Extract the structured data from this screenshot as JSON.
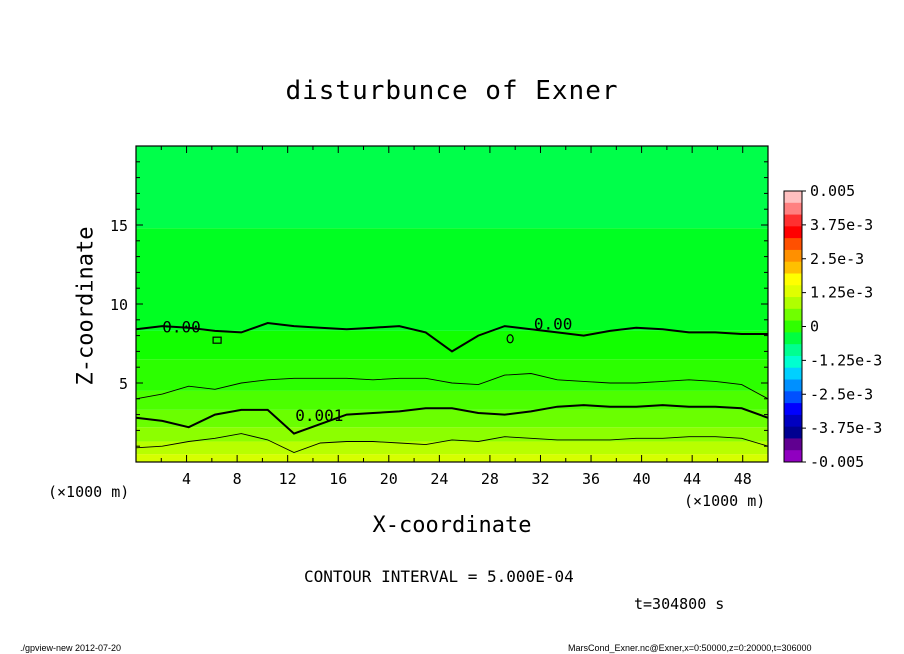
{
  "chart_data": {
    "type": "heatmap",
    "title": "disturbunce of Exner",
    "xlabel": "X-coordinate",
    "ylabel": "Z-coordinate",
    "x_unit_left": "(×1000 m)",
    "x_unit_right": "(×1000 m)",
    "xlim": [
      0,
      50
    ],
    "ylim": [
      0,
      20
    ],
    "x_ticks": [
      4,
      8,
      12,
      16,
      20,
      24,
      28,
      32,
      36,
      40,
      44,
      48
    ],
    "y_ticks": [
      5,
      10,
      15
    ],
    "colorbar": {
      "labels": [
        "0.005",
        "3.75e-3",
        "2.5e-3",
        "1.25e-3",
        "0",
        "-1.25e-3",
        "-2.5e-3",
        "-3.75e-3",
        "-0.005"
      ],
      "levels": [
        0.005,
        0.00375,
        0.0025,
        0.00125,
        0,
        -0.00125,
        -0.0025,
        -0.00375,
        -0.005
      ],
      "colors": [
        "#ffc0c0",
        "#ff8080",
        "#ff3030",
        "#ff0000",
        "#ff5000",
        "#ff9000",
        "#ffc000",
        "#ffff00",
        "#e0ff00",
        "#b0ff00",
        "#70ff00",
        "#30ff00",
        "#00ff40",
        "#00ff90",
        "#00ffd0",
        "#00d0ff",
        "#0090ff",
        "#0050ff",
        "#0000ff",
        "#0000c0",
        "#000090",
        "#600090",
        "#9000c0"
      ]
    },
    "bands_bottom_to_top": [
      {
        "color": "#d6ff00",
        "z": [
          0.0,
          0.5
        ]
      },
      {
        "color": "#b8ff00",
        "z": [
          0.5,
          1.3
        ]
      },
      {
        "color": "#8cff00",
        "z": [
          1.3,
          2.2
        ]
      },
      {
        "color": "#6aff00",
        "z": [
          2.2,
          3.3
        ]
      },
      {
        "color": "#4cff00",
        "z": [
          3.3,
          4.5
        ]
      },
      {
        "color": "#2cff00",
        "z": [
          4.5,
          6.5
        ]
      },
      {
        "color": "#12ff00",
        "z": [
          6.5,
          8.3
        ]
      },
      {
        "color": "#00ff22",
        "z": [
          8.3,
          14.8
        ]
      },
      {
        "color": "#00ff4a",
        "z": [
          14.8,
          20.0
        ]
      }
    ],
    "contour_labels": [
      {
        "text": "0.00",
        "x": 3.6,
        "z": 8.2
      },
      {
        "text": "0.00",
        "x": 33.0,
        "z": 8.4
      },
      {
        "text": "0.001",
        "x": 14.5,
        "z": 2.6
      }
    ],
    "contours": [
      {
        "level": 0.0,
        "bold": true,
        "z": [
          8.4,
          8.6,
          8.5,
          8.3,
          8.2,
          8.8,
          8.6,
          8.5,
          8.4,
          8.5,
          8.6,
          8.2,
          7.0,
          8.0,
          8.6,
          8.4,
          8.2,
          8.0,
          8.3,
          8.5,
          8.4,
          8.2,
          8.2,
          8.1,
          8.1
        ]
      },
      {
        "level": 0.0005,
        "bold": false,
        "z": [
          4.0,
          4.3,
          4.8,
          4.6,
          5.0,
          5.2,
          5.3,
          5.3,
          5.3,
          5.2,
          5.3,
          5.3,
          5.0,
          4.9,
          5.5,
          5.6,
          5.2,
          5.1,
          5.0,
          5.0,
          5.1,
          5.2,
          5.1,
          4.9,
          4.0
        ]
      },
      {
        "level": 0.001,
        "bold": true,
        "z": [
          2.8,
          2.6,
          2.2,
          3.0,
          3.3,
          3.3,
          1.8,
          2.4,
          3.0,
          3.1,
          3.2,
          3.4,
          3.4,
          3.1,
          3.0,
          3.2,
          3.5,
          3.6,
          3.5,
          3.5,
          3.6,
          3.5,
          3.5,
          3.4,
          2.8
        ]
      },
      {
        "level": 0.0015,
        "bold": false,
        "z": [
          0.9,
          1.0,
          1.3,
          1.5,
          1.8,
          1.4,
          0.6,
          1.2,
          1.3,
          1.3,
          1.2,
          1.1,
          1.4,
          1.3,
          1.6,
          1.5,
          1.4,
          1.4,
          1.4,
          1.5,
          1.5,
          1.6,
          1.6,
          1.5,
          1.0
        ]
      }
    ]
  },
  "interval_text": "CONTOUR INTERVAL = 5.000E-04",
  "time_text": "t=304800 s",
  "footer_left": "./gpview-new   2012-07-20",
  "footer_right": "MarsCond_Exner.nc@Exner,x=0:50000,z=0:20000,t=306000"
}
